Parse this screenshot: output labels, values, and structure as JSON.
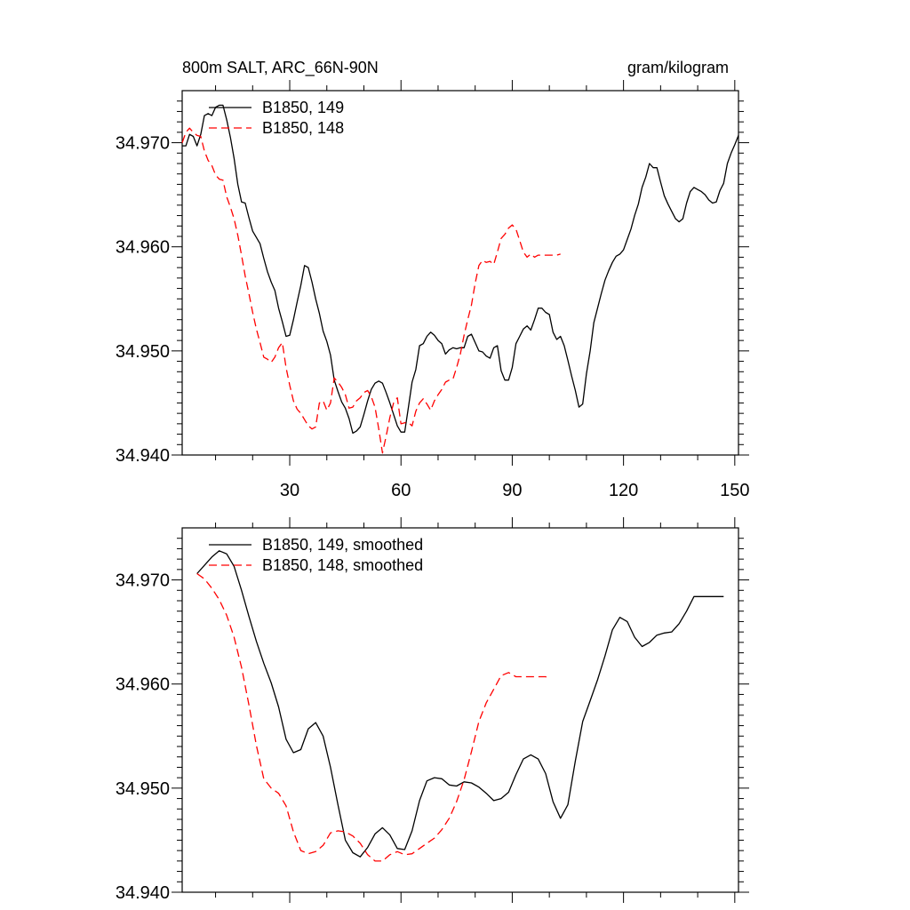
{
  "chart_data": [
    {
      "type": "line",
      "title": "800m SALT, ARC_66N-90N",
      "units": "gram/kilogram",
      "xlabel": "",
      "ylabel": "",
      "xlim": [
        1,
        151
      ],
      "ylim": [
        34.94,
        34.975
      ],
      "xticks": [
        30,
        60,
        90,
        120,
        150
      ],
      "yticks": [
        34.94,
        34.95,
        34.96,
        34.97
      ],
      "ytick_labels": [
        "34.940",
        "34.950",
        "34.960",
        "34.970"
      ],
      "legend": "top-left",
      "series": [
        {
          "name": "B1850, 149",
          "color": "#000000",
          "dash": "solid",
          "x": [
            1,
            2,
            3,
            4,
            5,
            6,
            7,
            8,
            9,
            10,
            11,
            12,
            13,
            14,
            15,
            16,
            17,
            18,
            19,
            20,
            21,
            22,
            23,
            24,
            25,
            26,
            27,
            28,
            29,
            30,
            31,
            32,
            33,
            34,
            35,
            36,
            37,
            38,
            39,
            40,
            41,
            42,
            43,
            44,
            45,
            46,
            47,
            48,
            49,
            50,
            51,
            52,
            53,
            54,
            55,
            56,
            57,
            58,
            59,
            60,
            61,
            62,
            63,
            64,
            65,
            66,
            67,
            68,
            69,
            70,
            71,
            72,
            73,
            74,
            75,
            76,
            77,
            78,
            79,
            80,
            81,
            82,
            83,
            84,
            85,
            86,
            87,
            88,
            89,
            90,
            91,
            92,
            93,
            94,
            95,
            96,
            97,
            98,
            99,
            100,
            101,
            102,
            103,
            104,
            105,
            106,
            107,
            108,
            109,
            110,
            111,
            112,
            113,
            114,
            115,
            116,
            117,
            118,
            119,
            120,
            121,
            122,
            123,
            124,
            125,
            126,
            127,
            128,
            129,
            130,
            131,
            132,
            133,
            134,
            135,
            136,
            137,
            138,
            139,
            140,
            141,
            142,
            143,
            144,
            145,
            146,
            147,
            148,
            149,
            150,
            151
          ],
          "values": [
            34.9697,
            34.9697,
            34.9708,
            34.9706,
            34.9697,
            34.9708,
            34.9726,
            34.9728,
            34.9726,
            34.9734,
            34.9736,
            34.9736,
            34.9722,
            34.9705,
            34.9685,
            34.966,
            34.9643,
            34.9642,
            34.9628,
            34.9615,
            34.9609,
            34.9603,
            34.9589,
            34.9576,
            34.9566,
            34.9558,
            34.9541,
            34.9528,
            34.9514,
            34.9515,
            34.953,
            34.9547,
            34.9563,
            34.9582,
            34.958,
            34.9566,
            34.955,
            34.9536,
            34.9519,
            34.9509,
            34.9496,
            34.9472,
            34.9461,
            34.9451,
            34.9445,
            34.9435,
            34.9421,
            34.9423,
            34.9427,
            34.9439,
            34.9452,
            34.9463,
            34.9469,
            34.9471,
            34.9469,
            34.946,
            34.945,
            34.9439,
            34.9428,
            34.9422,
            34.9422,
            34.9446,
            34.947,
            34.9482,
            34.9505,
            34.9507,
            34.9514,
            34.9518,
            34.9515,
            34.951,
            34.9507,
            34.9497,
            34.9501,
            34.9503,
            34.9502,
            34.9503,
            34.9503,
            34.9514,
            34.9516,
            34.9508,
            34.95,
            34.9499,
            34.9495,
            34.9493,
            34.9503,
            34.9505,
            34.9481,
            34.9472,
            34.9472,
            34.9484,
            34.9507,
            34.9514,
            34.9521,
            34.9524,
            34.952,
            34.953,
            34.9541,
            34.9541,
            34.9537,
            34.9535,
            34.9518,
            34.9511,
            34.9514,
            34.9505,
            34.9491,
            34.9476,
            34.9462,
            34.9446,
            34.9449,
            34.9478,
            34.95,
            34.9527,
            34.9541,
            34.9555,
            34.9568,
            34.9577,
            34.9585,
            34.9591,
            34.9593,
            34.9597,
            34.9607,
            34.9617,
            34.963,
            34.9641,
            34.9657,
            34.9667,
            34.968,
            34.9676,
            34.9676,
            34.9662,
            34.9649,
            34.9641,
            34.9634,
            34.9627,
            34.9624,
            34.9627,
            34.9642,
            34.9653,
            34.9657,
            34.9655,
            34.9653,
            34.965,
            34.9645,
            34.9642,
            34.9643,
            34.9654,
            34.9661,
            34.968,
            34.969,
            34.9698,
            34.9707
          ]
        },
        {
          "name": "B1850, 148",
          "color": "#ff0000",
          "dash": "dashed",
          "x": [
            1,
            2,
            3,
            4,
            5,
            6,
            7,
            8,
            9,
            10,
            11,
            12,
            13,
            14,
            15,
            16,
            17,
            18,
            19,
            20,
            21,
            22,
            23,
            24,
            25,
            26,
            27,
            28,
            29,
            30,
            31,
            32,
            33,
            34,
            35,
            36,
            37,
            38,
            39,
            40,
            41,
            42,
            43,
            44,
            45,
            46,
            47,
            48,
            49,
            50,
            51,
            52,
            53,
            54,
            55,
            56,
            57,
            58,
            59,
            60,
            61,
            62,
            63,
            64,
            65,
            66,
            67,
            68,
            69,
            70,
            71,
            72,
            73,
            74,
            75,
            76,
            77,
            78,
            79,
            80,
            81,
            82,
            83,
            84,
            85,
            86,
            87,
            88,
            89,
            90,
            91,
            92,
            93,
            94,
            95,
            96,
            97,
            98,
            99,
            100,
            101,
            102,
            103
          ],
          "values": [
            34.97,
            34.971,
            34.9714,
            34.971,
            34.9707,
            34.9706,
            34.9692,
            34.9683,
            34.9678,
            34.9669,
            34.9665,
            34.9664,
            34.9648,
            34.9638,
            34.9627,
            34.9611,
            34.9592,
            34.9572,
            34.9555,
            34.9537,
            34.9521,
            34.9508,
            34.9494,
            34.9492,
            34.9489,
            34.9494,
            34.9503,
            34.9508,
            34.9484,
            34.9467,
            34.9452,
            34.9444,
            34.944,
            34.9434,
            34.9428,
            34.9425,
            34.9427,
            34.945,
            34.9452,
            34.9443,
            34.945,
            34.9474,
            34.947,
            34.9465,
            34.9458,
            34.9445,
            34.9446,
            34.9452,
            34.9455,
            34.946,
            34.9462,
            34.9456,
            34.9446,
            34.9425,
            34.9402,
            34.9418,
            34.9436,
            34.945,
            34.9455,
            34.943,
            34.9431,
            34.9431,
            34.9428,
            34.9442,
            34.945,
            34.9454,
            34.9449,
            34.9443,
            34.9452,
            34.9458,
            34.9463,
            34.947,
            34.9472,
            34.9473,
            34.9484,
            34.9497,
            34.9515,
            34.953,
            34.9544,
            34.9565,
            34.9582,
            34.9587,
            34.9585,
            34.9586,
            34.9583,
            34.9595,
            34.9608,
            34.9612,
            34.9618,
            34.9621,
            34.9617,
            34.9606,
            34.9595,
            34.959,
            34.9593,
            34.959,
            34.9592,
            34.9592,
            34.9592,
            34.9592,
            34.9592,
            34.9592,
            34.9593
          ]
        }
      ]
    },
    {
      "type": "line",
      "title": "",
      "xlabel": "",
      "ylabel": "",
      "xlim": [
        1,
        151
      ],
      "ylim": [
        34.94,
        34.975
      ],
      "xticks": [
        30,
        60,
        90,
        120,
        150
      ],
      "yticks": [
        34.94,
        34.95,
        34.96,
        34.97
      ],
      "ytick_labels": [
        "34.940",
        "34.950",
        "34.960",
        "34.970"
      ],
      "legend": "top-left",
      "series": [
        {
          "name": "B1850, 149, smoothed",
          "color": "#000000",
          "dash": "solid",
          "x": [
            5,
            7,
            9,
            11,
            13,
            15,
            17,
            19,
            21,
            23,
            25,
            27,
            29,
            31,
            33,
            35,
            37,
            39,
            41,
            43,
            45,
            47,
            49,
            51,
            53,
            55,
            57,
            59,
            61,
            63,
            65,
            67,
            69,
            71,
            73,
            75,
            77,
            79,
            81,
            83,
            85,
            87,
            89,
            91,
            93,
            95,
            97,
            99,
            101,
            103,
            105,
            107,
            109,
            111,
            113,
            115,
            117,
            119,
            121,
            123,
            125,
            127,
            129,
            131,
            133,
            135,
            137,
            139,
            141,
            143,
            145,
            147
          ],
          "values": [
            34.9706,
            34.9714,
            34.9722,
            34.9728,
            34.9725,
            34.9713,
            34.969,
            34.9665,
            34.9641,
            34.962,
            34.9601,
            34.9578,
            34.9547,
            34.9534,
            34.9537,
            34.9557,
            34.9563,
            34.955,
            34.952,
            34.9484,
            34.945,
            34.9438,
            34.9434,
            34.9443,
            34.9456,
            34.9462,
            34.9455,
            34.9442,
            34.9441,
            34.9459,
            34.9488,
            34.9507,
            34.951,
            34.9509,
            34.9503,
            34.9502,
            34.9506,
            34.9505,
            34.9501,
            34.9495,
            34.9488,
            34.949,
            34.9496,
            34.9513,
            34.9528,
            34.9532,
            34.9528,
            34.9514,
            34.9487,
            34.9471,
            34.9484,
            34.9526,
            34.9564,
            34.9584,
            34.9604,
            34.9627,
            34.9652,
            34.9664,
            34.966,
            34.9645,
            34.9636,
            34.964,
            34.9647,
            34.9649,
            34.965,
            34.9658,
            34.967,
            34.9684,
            34.9684,
            34.9684,
            34.9684,
            34.9684
          ]
        },
        {
          "name": "B1850, 148, smoothed",
          "color": "#ff0000",
          "dash": "dashed",
          "x": [
            5,
            7,
            9,
            11,
            13,
            15,
            17,
            19,
            21,
            23,
            25,
            27,
            29,
            31,
            33,
            35,
            37,
            39,
            41,
            43,
            45,
            47,
            49,
            51,
            53,
            55,
            57,
            59,
            61,
            63,
            65,
            67,
            69,
            71,
            73,
            75,
            77,
            79,
            81,
            83,
            85,
            87,
            89,
            91,
            93,
            95,
            97,
            99,
            100
          ],
          "values": [
            34.9706,
            34.9701,
            34.9692,
            34.9681,
            34.9666,
            34.9645,
            34.9616,
            34.958,
            34.9541,
            34.9509,
            34.95,
            34.9495,
            34.9483,
            34.9458,
            34.944,
            34.9437,
            34.9439,
            34.9445,
            34.9457,
            34.9459,
            34.9458,
            34.9454,
            34.9447,
            34.9436,
            34.943,
            34.943,
            34.9436,
            34.9439,
            34.9436,
            34.9437,
            34.9442,
            34.9447,
            34.9452,
            34.946,
            34.9471,
            34.9487,
            34.9508,
            34.9535,
            34.9564,
            34.9582,
            34.9595,
            34.9608,
            34.9611,
            34.9607,
            34.9607,
            34.9607,
            34.9607,
            34.9607,
            34.9605
          ]
        }
      ]
    }
  ]
}
